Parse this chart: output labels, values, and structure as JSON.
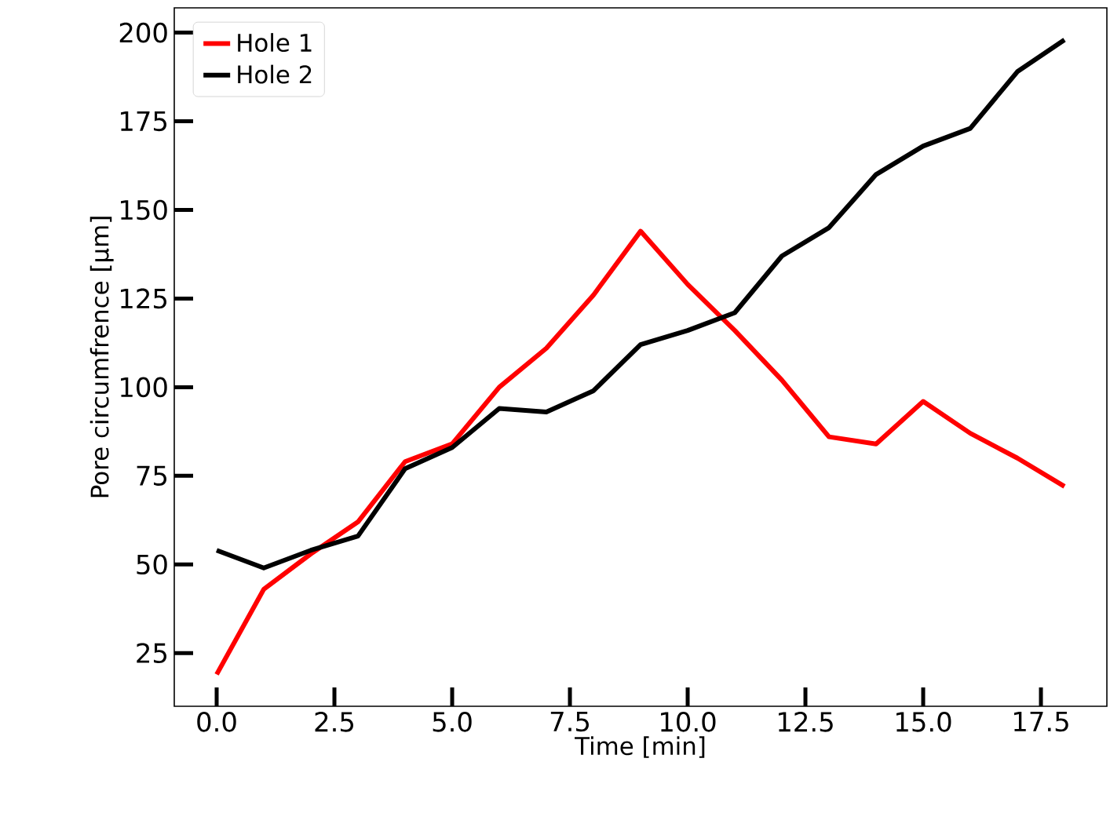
{
  "chart_data": {
    "type": "line",
    "xlabel": "Time [min]",
    "ylabel": "Pore circumfrence [μm]",
    "x": [
      0,
      1,
      2,
      3,
      4,
      5,
      6,
      7,
      8,
      9,
      10,
      11,
      12,
      13,
      14,
      15,
      16,
      17,
      18
    ],
    "series": [
      {
        "name": "Hole 1",
        "color": "#ff0000",
        "values": [
          19,
          43,
          53,
          62,
          79,
          84,
          100,
          111,
          126,
          144,
          129,
          116,
          102,
          86,
          84,
          96,
          87,
          80,
          72
        ]
      },
      {
        "name": "Hole 2",
        "color": "#000000",
        "values": [
          54,
          49,
          54,
          58,
          77,
          83,
          94,
          93,
          99,
          112,
          116,
          121,
          137,
          145,
          160,
          168,
          173,
          189,
          198
        ]
      }
    ],
    "xlim": [
      -0.9,
      18.9
    ],
    "ylim": [
      10,
      207
    ],
    "xticks": [
      {
        "value": 0,
        "label": "0.0"
      },
      2.5,
      {
        "value": 5,
        "label": "5.0"
      },
      7.5,
      {
        "value": 10,
        "label": "10.0"
      },
      12.5,
      {
        "value": 15,
        "label": "15.0"
      },
      17.5
    ],
    "yticks": [
      25,
      50,
      75,
      100,
      125,
      150,
      175,
      200
    ],
    "legend": "top left",
    "marker": "none",
    "line_style": "solid"
  }
}
